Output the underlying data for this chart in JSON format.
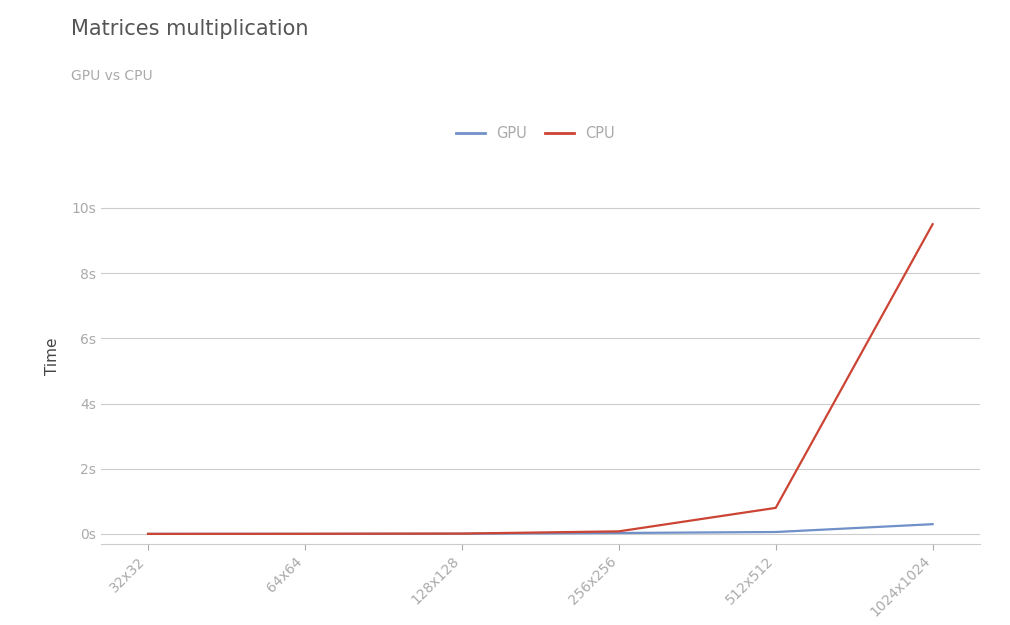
{
  "title": "Matrices multiplication",
  "subtitle": "GPU vs CPU",
  "ylabel": "Time",
  "x_labels": [
    "32x32",
    "64x64",
    "128x128",
    "256x256",
    "512x512",
    "1024x1024"
  ],
  "x_values": [
    0,
    1,
    2,
    3,
    4,
    5
  ],
  "gpu_values": [
    0.003,
    0.004,
    0.008,
    0.03,
    0.06,
    0.3
  ],
  "cpu_values": [
    0.002,
    0.005,
    0.012,
    0.08,
    0.8,
    9.5
  ],
  "gpu_color": "#7090c8",
  "cpu_color": "#cc4433",
  "yticks": [
    0,
    2,
    4,
    6,
    8,
    10
  ],
  "ytick_labels": [
    "0s",
    "2s",
    "4s",
    "6s",
    "8s",
    "10s"
  ],
  "ylim": [
    -0.3,
    11.2
  ],
  "grid_color": "#cccccc",
  "background_color": "#ffffff",
  "title_color": "#555555",
  "subtitle_color": "#aaaaaa",
  "axis_label_color": "#444444",
  "tick_label_color": "#aaaaaa",
  "legend_labels": [
    "GPU",
    "CPU"
  ],
  "line_width": 1.6
}
